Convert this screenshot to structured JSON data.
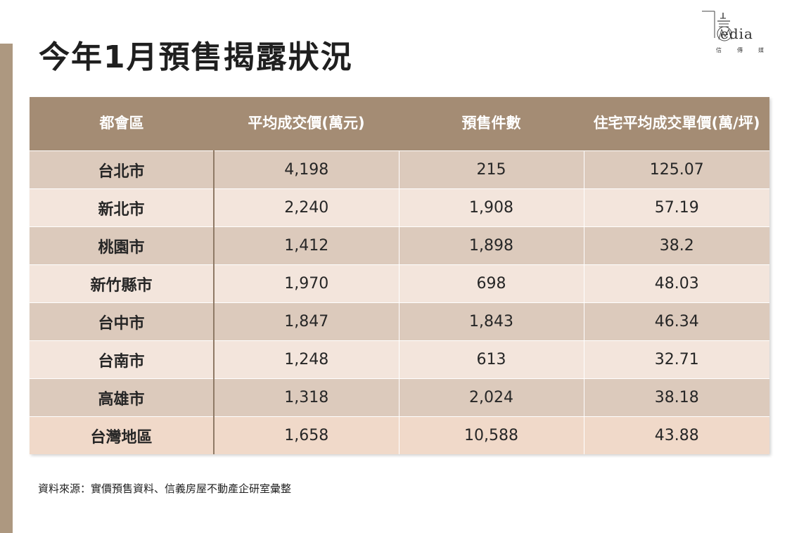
{
  "title": "今年1月預售揭露狀況",
  "logo": {
    "word": "edia",
    "sub": "信傳媒"
  },
  "table": {
    "headers": [
      "都會區",
      "平均成交價(萬元)",
      "預售件數",
      "住宅平均成交單價(萬/坪)"
    ],
    "rows": [
      [
        "台北市",
        "4,198",
        "215",
        "125.07"
      ],
      [
        "新北市",
        "2,240",
        "1,908",
        "57.19"
      ],
      [
        "桃園市",
        "1,412",
        "1,898",
        "38.2"
      ],
      [
        "新竹縣市",
        "1,970",
        "698",
        "48.03"
      ],
      [
        "台中市",
        "1,847",
        "1,843",
        "46.34"
      ],
      [
        "台南市",
        "1,248",
        "613",
        "32.71"
      ],
      [
        "高雄市",
        "1,318",
        "2,024",
        "38.18"
      ],
      [
        "台灣地區",
        "1,658",
        "10,588",
        "43.88"
      ]
    ]
  },
  "source": "資料來源：實價預售資料、信義房屋不動產企研室彙整",
  "colors": {
    "accent": "#a48c74",
    "row_dark": "#dccabc",
    "row_light": "#f3e5dc"
  }
}
